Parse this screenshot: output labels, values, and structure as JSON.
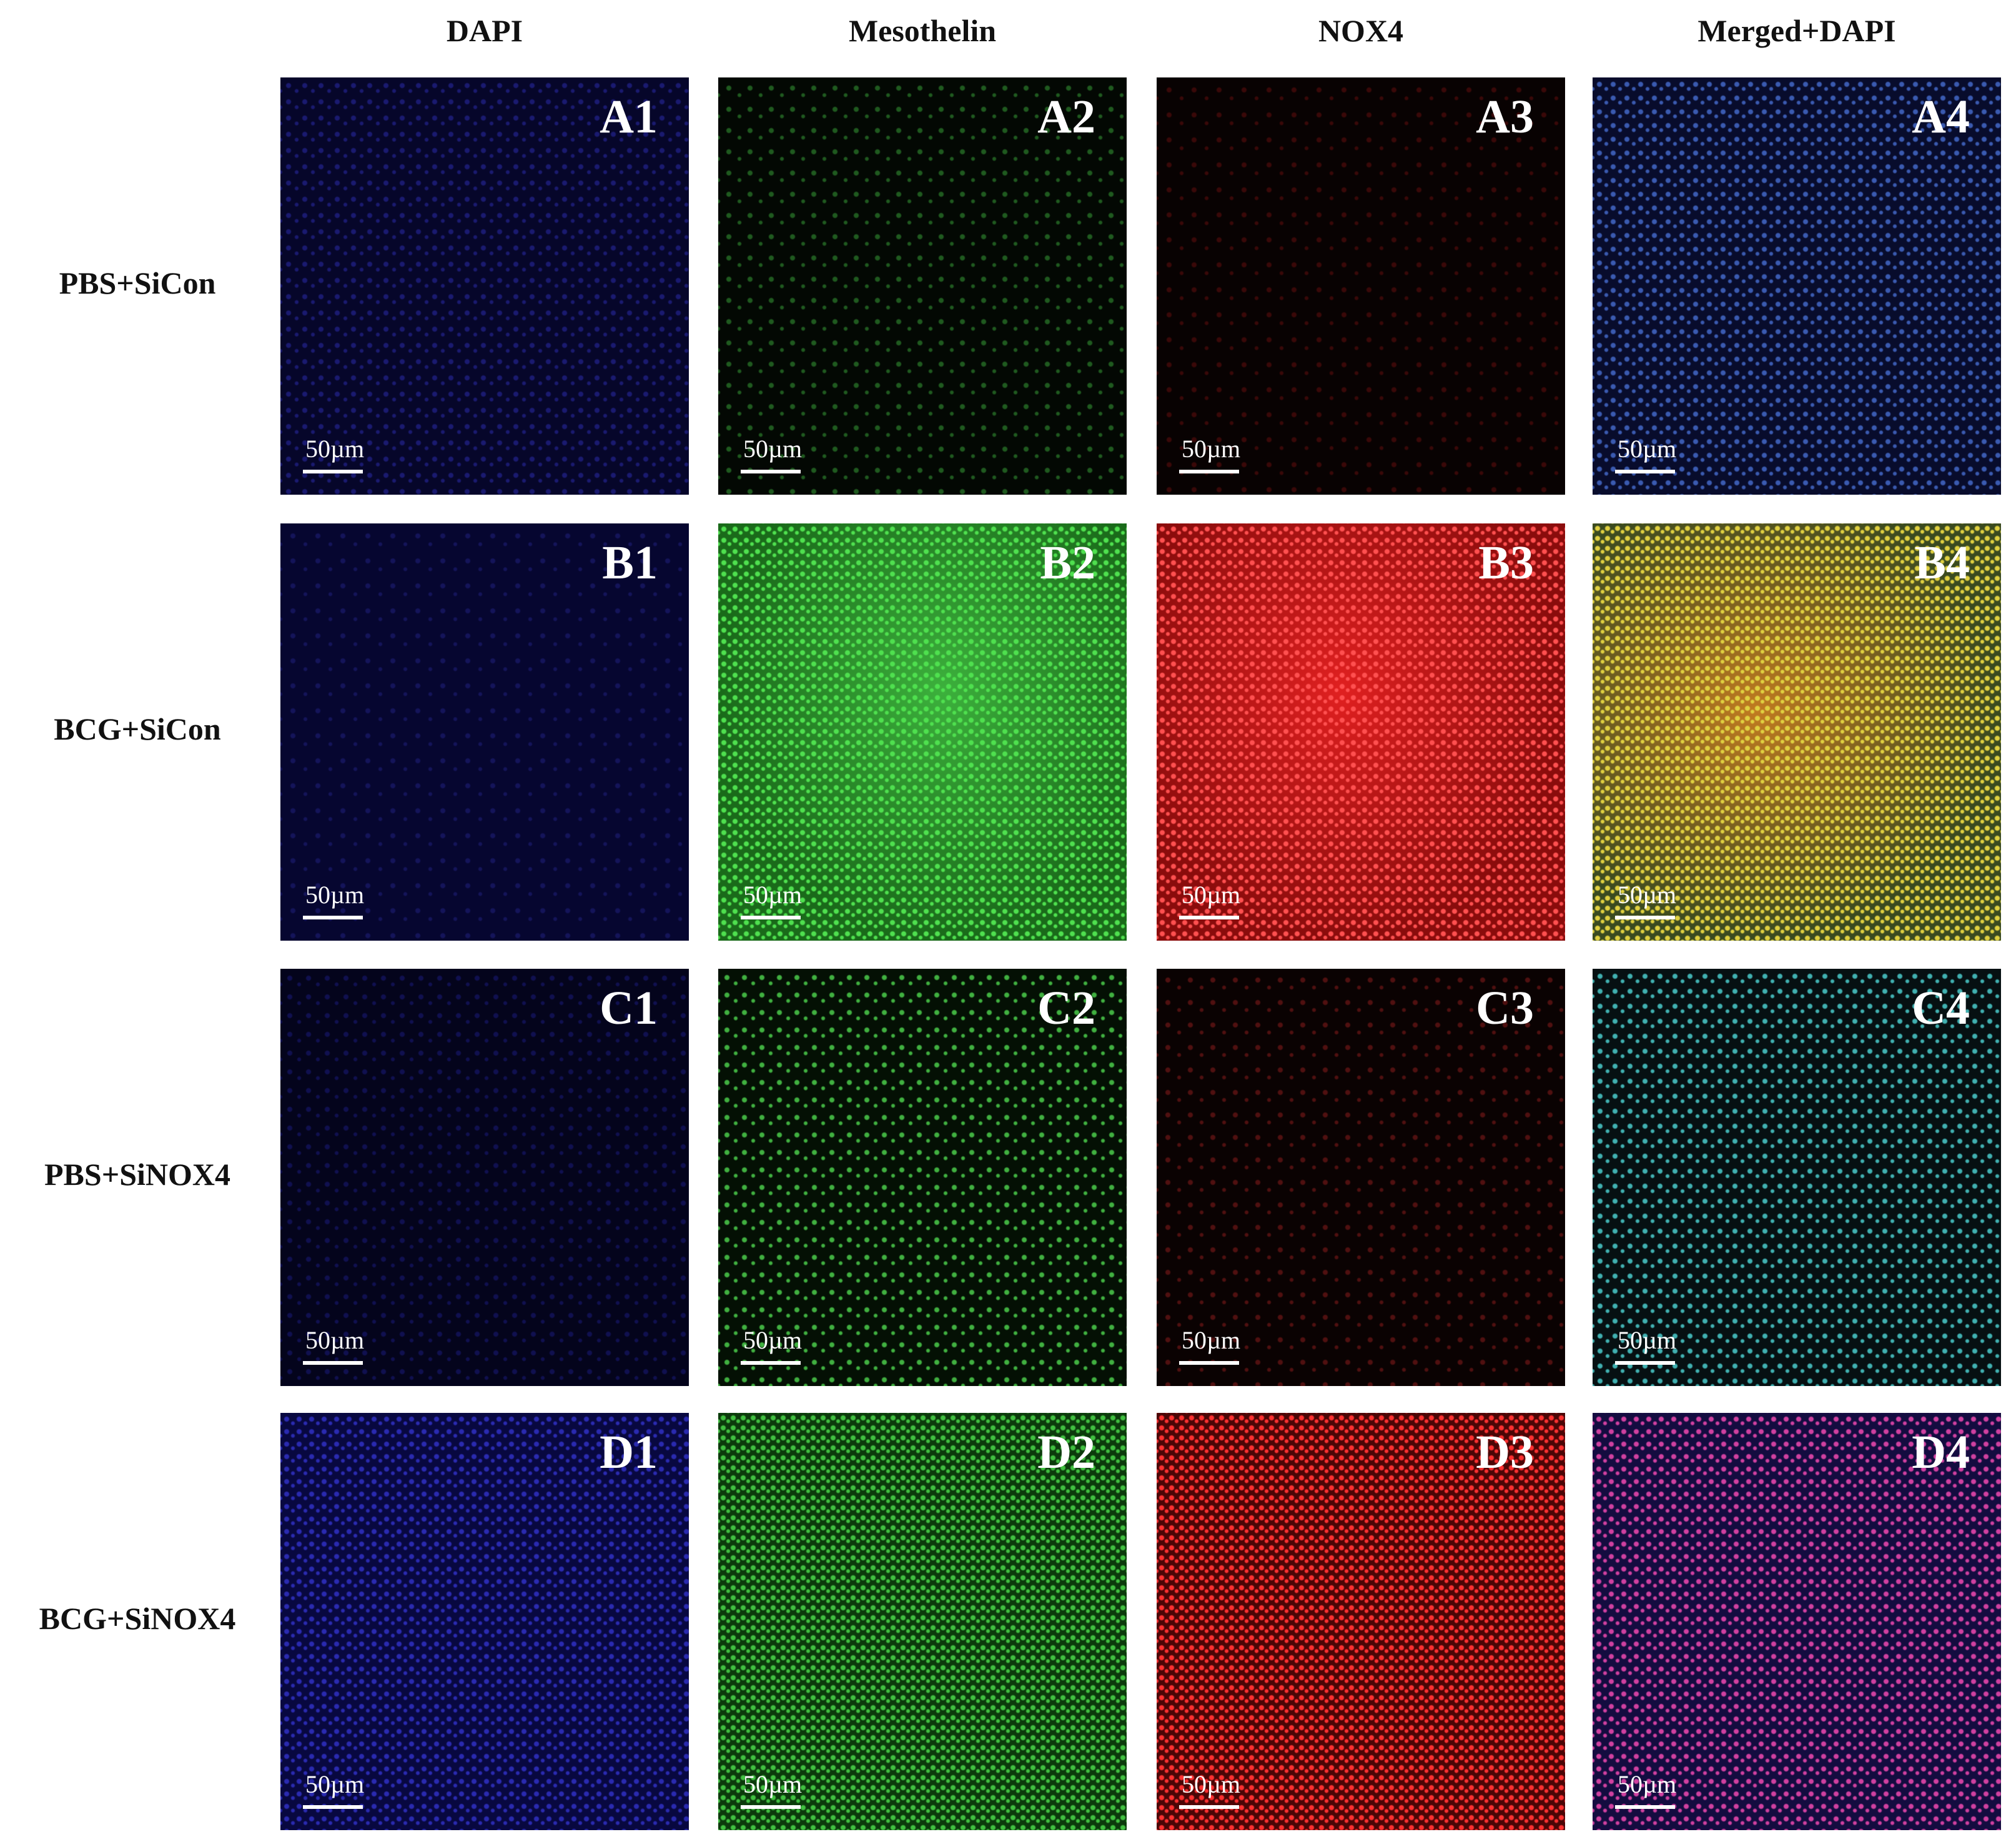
{
  "columns": [
    "DAPI",
    "Mesothelin",
    "NOX4",
    "Merged+DAPI"
  ],
  "rows": [
    {
      "label": "PBS+SiCon",
      "panels": [
        {
          "label": "A1",
          "scale_bar": "50µm"
        },
        {
          "label": "A2",
          "scale_bar": "50µm"
        },
        {
          "label": "A3",
          "scale_bar": "50µm"
        },
        {
          "label": "A4",
          "scale_bar": "50µm"
        }
      ]
    },
    {
      "label": "BCG+SiCon",
      "panels": [
        {
          "label": "B1",
          "scale_bar": "50µm"
        },
        {
          "label": "B2",
          "scale_bar": "50µm"
        },
        {
          "label": "B3",
          "scale_bar": "50µm"
        },
        {
          "label": "B4",
          "scale_bar": "50µm"
        }
      ]
    },
    {
      "label": "PBS+SiNOX4",
      "panels": [
        {
          "label": "C1",
          "scale_bar": "50µm"
        },
        {
          "label": "C2",
          "scale_bar": "50µm"
        },
        {
          "label": "C3",
          "scale_bar": "50µm"
        },
        {
          "label": "C4",
          "scale_bar": "50µm"
        }
      ]
    },
    {
      "label": "BCG+SiNOX4",
      "panels": [
        {
          "label": "D1",
          "scale_bar": "50µm"
        },
        {
          "label": "D2",
          "scale_bar": "50µm"
        },
        {
          "label": "D3",
          "scale_bar": "50µm"
        },
        {
          "label": "D4",
          "scale_bar": "50µm"
        }
      ]
    }
  ]
}
